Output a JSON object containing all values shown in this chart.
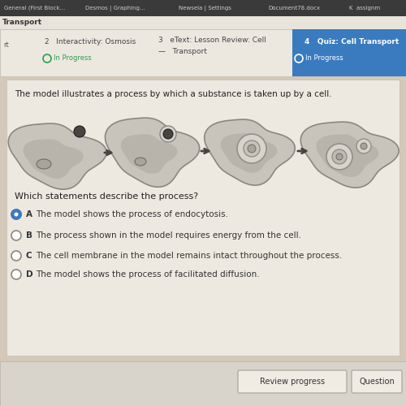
{
  "bg_overall": "#d4c9b8",
  "bg_top_bar": "#3a3a3a",
  "bg_nav": "#e8e4dc",
  "bg_steps": "#ece8e0",
  "bg_blue": "#3a7bbf",
  "bg_content": "#eee9e0",
  "bg_bottom": "#d8d3cb",
  "top_bar_items": [
    "General (First Block...",
    "Desmos | Graphing...",
    "Newsela | Settings",
    "Document78.docx",
    "K  assignm"
  ],
  "top_bar_x": [
    5,
    105,
    220,
    330,
    430
  ],
  "nav_text": "Transport",
  "nav_left_text": "rt",
  "step2_line1": "2   Interactivity: Osmosis",
  "step3_line1": "3   eText: Lesson Review: Cell",
  "step3_line2": "—   Transport",
  "step4_text": "4   Quiz: Cell Transport",
  "in_progress_text": "In Progress",
  "in_progress2_text": "In Progress",
  "question_text": "The model illustrates a process by which a substance is taken up by a cell.",
  "which_text": "Which statements describe the process?",
  "options": [
    [
      "A",
      "The model shows the process of endocytosis."
    ],
    [
      "B",
      "The process shown in the model requires energy from the cell."
    ],
    [
      "C",
      "The cell membrane in the model remains intact throughout the process."
    ],
    [
      "D",
      "The model shows the process of facilitated diffusion."
    ]
  ],
  "selected_option": 0,
  "cell_fill": "#c8c4bc",
  "cell_edge": "#888880",
  "cell_inner_fill": "#b8b4ac",
  "vesicle_fill": "#d8d4cc",
  "vesicle_edge": "#909088",
  "nucleus_fill": "#a8a49c",
  "nucleus_edge": "#706c64",
  "particle_fill": "#484440",
  "arrow_color": "#484440",
  "radio_selected_fill": "#3a7bbf",
  "radio_unselected_edge": "#888880",
  "btn_bg": "#f0ece4",
  "btn_edge": "#b0aca4",
  "review_btn_text": "Review progress",
  "question_btn_text": "Question"
}
